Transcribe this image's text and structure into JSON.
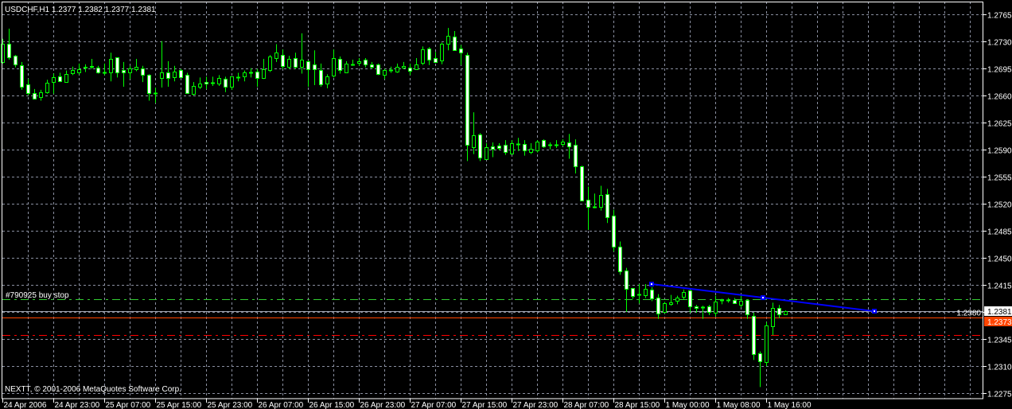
{
  "header": {
    "title": "USDCHF,H1  1.2377 1.2382 1.2377 1.2381"
  },
  "footer": {
    "copyright": "NEXTT, © 2001-2006 MetaQuotes Software Corp."
  },
  "colors": {
    "background": "#000000",
    "frame": "#ffffff",
    "grid": "#8a8fa0",
    "candle_outline": "#00ff00",
    "bull_body": "#000000",
    "bear_body": "#ffffff",
    "trendline": "#0000ff"
  },
  "chart_data": {
    "type": "candlestick",
    "symbol": "USDCHF",
    "timeframe": "H1",
    "ylim": [
      1.2268,
      1.2781
    ],
    "grid": true,
    "y_ticks": [
      "1.2765",
      "1.2730",
      "1.2695",
      "1.2660",
      "1.2625",
      "1.2590",
      "1.2555",
      "1.2520",
      "1.2485",
      "1.2450",
      "1.2415",
      "1.2380",
      "1.2345",
      "1.2310",
      "1.2275"
    ],
    "x_ticks": [
      {
        "label": "24 Apr 2006",
        "bar": 0
      },
      {
        "label": "24 Apr 23:00",
        "bar": 8
      },
      {
        "label": "25 Apr 07:00",
        "bar": 16
      },
      {
        "label": "25 Apr 15:00",
        "bar": 24
      },
      {
        "label": "25 Apr 23:00",
        "bar": 32
      },
      {
        "label": "26 Apr 07:00",
        "bar": 40
      },
      {
        "label": "26 Apr 15:00",
        "bar": 48
      },
      {
        "label": "26 Apr 23:00",
        "bar": 56
      },
      {
        "label": "27 Apr 07:00",
        "bar": 64
      },
      {
        "label": "27 Apr 15:00",
        "bar": 72
      },
      {
        "label": "27 Apr 23:00",
        "bar": 80
      },
      {
        "label": "28 Apr 07:00",
        "bar": 88
      },
      {
        "label": "28 Apr 15:00",
        "bar": 96
      },
      {
        "label": "1 May 00:00",
        "bar": 104
      },
      {
        "label": "1 May 08:00",
        "bar": 112
      },
      {
        "label": "1 May 16:00",
        "bar": 120
      }
    ],
    "ohlc_columns": [
      "open",
      "high",
      "low",
      "close"
    ],
    "candles": [
      [
        1.2703,
        1.2733,
        1.2701,
        1.2727
      ],
      [
        1.2726,
        1.2746,
        1.2706,
        1.2709
      ],
      [
        1.2711,
        1.2712,
        1.2696,
        1.27
      ],
      [
        1.2699,
        1.2703,
        1.2667,
        1.2671
      ],
      [
        1.2674,
        1.2681,
        1.266,
        1.2663
      ],
      [
        1.2663,
        1.2668,
        1.2655,
        1.2656
      ],
      [
        1.2658,
        1.2667,
        1.2653,
        1.2664
      ],
      [
        1.2664,
        1.268,
        1.2662,
        1.2676
      ],
      [
        1.2677,
        1.2688,
        1.2662,
        1.2683
      ],
      [
        1.2684,
        1.2689,
        1.2677,
        1.2678
      ],
      [
        1.2677,
        1.2692,
        1.2677,
        1.2687
      ],
      [
        1.2688,
        1.2697,
        1.2686,
        1.2693
      ],
      [
        1.269,
        1.2701,
        1.2687,
        1.2694
      ],
      [
        1.2697,
        1.27,
        1.269,
        1.2696
      ],
      [
        1.2698,
        1.2707,
        1.2694,
        1.2697
      ],
      [
        1.2696,
        1.2698,
        1.2688,
        1.269
      ],
      [
        1.269,
        1.2701,
        1.2686,
        1.269
      ],
      [
        1.269,
        1.2715,
        1.2678,
        1.2707
      ],
      [
        1.2709,
        1.2709,
        1.2683,
        1.269
      ],
      [
        1.2693,
        1.2703,
        1.2671,
        1.269
      ],
      [
        1.2689,
        1.2698,
        1.2681,
        1.2695
      ],
      [
        1.2694,
        1.2707,
        1.2691,
        1.2697
      ],
      [
        1.2695,
        1.2698,
        1.2677,
        1.2686
      ],
      [
        1.2686,
        1.2687,
        1.2653,
        1.2663
      ],
      [
        1.2663,
        1.267,
        1.265,
        1.2663
      ],
      [
        1.2682,
        1.273,
        1.267,
        1.269
      ],
      [
        1.2689,
        1.2704,
        1.2671,
        1.2682
      ],
      [
        1.2683,
        1.2698,
        1.2678,
        1.2691
      ],
      [
        1.2693,
        1.2694,
        1.2682,
        1.2683
      ],
      [
        1.2686,
        1.2689,
        1.2663,
        1.2663
      ],
      [
        1.2662,
        1.2677,
        1.266,
        1.2672
      ],
      [
        1.2671,
        1.2683,
        1.2668,
        1.2675
      ],
      [
        1.2677,
        1.2684,
        1.2668,
        1.2675
      ],
      [
        1.2676,
        1.2684,
        1.2672,
        1.2676
      ],
      [
        1.2675,
        1.2686,
        1.2672,
        1.2682
      ],
      [
        1.2681,
        1.2684,
        1.2664,
        1.2671
      ],
      [
        1.2671,
        1.2684,
        1.2667,
        1.2684
      ],
      [
        1.2683,
        1.2689,
        1.2678,
        1.2683
      ],
      [
        1.2684,
        1.2692,
        1.2678,
        1.2689
      ],
      [
        1.269,
        1.2695,
        1.2683,
        1.269
      ],
      [
        1.2691,
        1.2694,
        1.2671,
        1.2682
      ],
      [
        1.2682,
        1.2707,
        1.2681,
        1.2694
      ],
      [
        1.2693,
        1.2712,
        1.269,
        1.271
      ],
      [
        1.2708,
        1.2726,
        1.2703,
        1.2715
      ],
      [
        1.2712,
        1.2719,
        1.2694,
        1.2698
      ],
      [
        1.2697,
        1.2711,
        1.2694,
        1.2707
      ],
      [
        1.2708,
        1.2715,
        1.2694,
        1.2697
      ],
      [
        1.2697,
        1.274,
        1.2688,
        1.2706
      ],
      [
        1.2704,
        1.2705,
        1.2671,
        1.2694
      ],
      [
        1.27,
        1.2718,
        1.2673,
        1.2694
      ],
      [
        1.2693,
        1.2701,
        1.2671,
        1.2674
      ],
      [
        1.2675,
        1.2687,
        1.2669,
        1.2684
      ],
      [
        1.2685,
        1.2719,
        1.2683,
        1.2708
      ],
      [
        1.2707,
        1.271,
        1.2688,
        1.2693
      ],
      [
        1.269,
        1.2704,
        1.2689,
        1.2701
      ],
      [
        1.27,
        1.2706,
        1.2698,
        1.27
      ],
      [
        1.2702,
        1.2708,
        1.2698,
        1.2704
      ],
      [
        1.2706,
        1.2708,
        1.2696,
        1.27
      ],
      [
        1.27,
        1.2703,
        1.2694,
        1.2697
      ],
      [
        1.27,
        1.2701,
        1.2686,
        1.2687
      ],
      [
        1.2686,
        1.2694,
        1.2681,
        1.2693
      ],
      [
        1.2693,
        1.2697,
        1.2689,
        1.2693
      ],
      [
        1.2691,
        1.2701,
        1.2689,
        1.2697
      ],
      [
        1.2696,
        1.2703,
        1.2694,
        1.2698
      ],
      [
        1.2696,
        1.2701,
        1.2686,
        1.2692
      ],
      [
        1.2694,
        1.2708,
        1.2693,
        1.27
      ],
      [
        1.2702,
        1.2723,
        1.2699,
        1.2719
      ],
      [
        1.272,
        1.2722,
        1.2699,
        1.2706
      ],
      [
        1.2708,
        1.2716,
        1.2702,
        1.2703
      ],
      [
        1.2705,
        1.2728,
        1.27,
        1.2726
      ],
      [
        1.2726,
        1.2747,
        1.2718,
        1.2737
      ],
      [
        1.2736,
        1.2743,
        1.2718,
        1.2718
      ],
      [
        1.272,
        1.2725,
        1.2699,
        1.2715
      ],
      [
        1.2712,
        1.2715,
        1.2575,
        1.2596
      ],
      [
        1.2593,
        1.2638,
        1.2584,
        1.2608
      ],
      [
        1.2609,
        1.2611,
        1.2575,
        1.2579
      ],
      [
        1.2577,
        1.2598,
        1.2577,
        1.2593
      ],
      [
        1.2594,
        1.2599,
        1.258,
        1.2591
      ],
      [
        1.2595,
        1.2598,
        1.2589,
        1.2592
      ],
      [
        1.2596,
        1.2602,
        1.2583,
        1.2587
      ],
      [
        1.2585,
        1.2602,
        1.2585,
        1.2598
      ],
      [
        1.2597,
        1.2605,
        1.2588,
        1.2597
      ],
      [
        1.2597,
        1.2602,
        1.2582,
        1.2589
      ],
      [
        1.2587,
        1.2598,
        1.2584,
        1.2591
      ],
      [
        1.2589,
        1.2602,
        1.2586,
        1.26
      ],
      [
        1.2602,
        1.2603,
        1.2592,
        1.2594
      ],
      [
        1.2596,
        1.2599,
        1.259,
        1.2596
      ],
      [
        1.2596,
        1.2602,
        1.2592,
        1.2596
      ],
      [
        1.2597,
        1.2603,
        1.2594,
        1.26
      ],
      [
        1.2599,
        1.261,
        1.2578,
        1.2594
      ],
      [
        1.2596,
        1.2603,
        1.2559,
        1.2568
      ],
      [
        1.2568,
        1.2569,
        1.2524,
        1.2524
      ],
      [
        1.2525,
        1.2542,
        1.2486,
        1.2516
      ],
      [
        1.2516,
        1.2533,
        1.2514,
        1.2516
      ],
      [
        1.2516,
        1.2543,
        1.2511,
        1.2531
      ],
      [
        1.2532,
        1.2539,
        1.2495,
        1.2502
      ],
      [
        1.2504,
        1.2512,
        1.2458,
        1.2464
      ],
      [
        1.2464,
        1.2471,
        1.2428,
        1.2433
      ],
      [
        1.2434,
        1.2437,
        1.238,
        1.241
      ],
      [
        1.2411,
        1.2411,
        1.2397,
        1.2401
      ],
      [
        1.2403,
        1.2416,
        1.2391,
        1.2403
      ],
      [
        1.2402,
        1.2416,
        1.2398,
        1.241
      ],
      [
        1.2409,
        1.2412,
        1.2394,
        1.2398
      ],
      [
        1.2399,
        1.2403,
        1.2371,
        1.2378
      ],
      [
        1.238,
        1.2393,
        1.2378,
        1.2391
      ],
      [
        1.239,
        1.2402,
        1.2388,
        1.2392
      ],
      [
        1.2394,
        1.2401,
        1.239,
        1.2399
      ],
      [
        1.24,
        1.2409,
        1.2396,
        1.2406
      ],
      [
        1.2408,
        1.2409,
        1.2379,
        1.2387
      ],
      [
        1.2387,
        1.2389,
        1.2379,
        1.2385
      ],
      [
        1.2386,
        1.2388,
        1.2371,
        1.2386
      ],
      [
        1.2387,
        1.2389,
        1.2376,
        1.238
      ],
      [
        1.2379,
        1.2401,
        1.2374,
        1.2393
      ],
      [
        1.2395,
        1.2397,
        1.239,
        1.2395
      ],
      [
        1.2395,
        1.2398,
        1.2392,
        1.2395
      ],
      [
        1.2395,
        1.2398,
        1.2391,
        1.2391
      ],
      [
        1.2389,
        1.2401,
        1.2386,
        1.2394
      ],
      [
        1.2395,
        1.2395,
        1.2371,
        1.2377
      ],
      [
        1.2375,
        1.2379,
        1.2318,
        1.2326
      ],
      [
        1.2327,
        1.2329,
        1.2283,
        1.2316
      ],
      [
        1.2315,
        1.2367,
        1.231,
        1.2363
      ],
      [
        1.2362,
        1.2392,
        1.235,
        1.2385
      ],
      [
        1.2385,
        1.2389,
        1.2372,
        1.2377
      ],
      [
        1.2377,
        1.2382,
        1.2377,
        1.2381
      ]
    ],
    "horizontal_lines": [
      {
        "name": "buy-stop-order",
        "label": "#790925 buy stop",
        "price": 1.2396,
        "color": "#32cd32",
        "style": "dash-dot"
      },
      {
        "name": "bid-line",
        "price": 1.2381,
        "color": "#a0a4b0",
        "style": "solid",
        "axis_label": "1.2381",
        "axis_label_bg": "#ffffff",
        "axis_label_fg": "#000000"
      },
      {
        "name": "orange-line",
        "price": 1.2373,
        "color": "#ff4500",
        "style": "solid",
        "axis_label": "1.2373",
        "axis_label_bg": "#ff4500",
        "axis_label_fg": "#ffffff"
      },
      {
        "name": "red-level",
        "price": 1.235,
        "color": "#ff0000",
        "style": "dash-dot"
      }
    ],
    "trendline": {
      "color": "#0000ff",
      "from": {
        "bar": 102,
        "price": 1.2416
      },
      "to": {
        "bar": 137,
        "price": 1.2381
      }
    }
  }
}
